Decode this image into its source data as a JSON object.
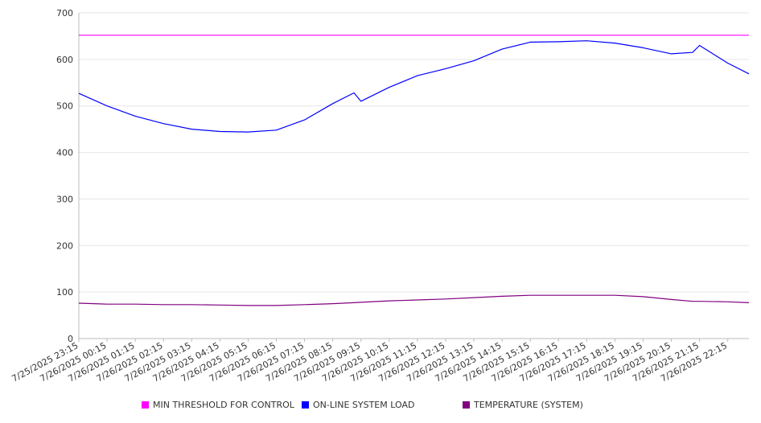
{
  "chart_data": {
    "type": "line",
    "x_tick_labels": [
      "7/25/2025 23:15",
      "7/26/2025 00:15",
      "7/26/2025 01:15",
      "7/26/2025 02:15",
      "7/26/2025 03:15",
      "7/26/2025 04:15",
      "7/26/2025 05:15",
      "7/26/2025 06:15",
      "7/26/2025 07:15",
      "7/26/2025 08:15",
      "7/26/2025 09:15",
      "7/26/2025 10:15",
      "7/26/2025 11:15",
      "7/26/2025 12:15",
      "7/26/2025 13:15",
      "7/26/2025 14:15",
      "7/26/2025 15:15",
      "7/26/2025 16:15",
      "7/26/2025 17:15",
      "7/26/2025 18:15",
      "7/26/2025 19:15",
      "7/26/2025 20:15",
      "7/26/2025 21:15",
      "7/26/2025 22:15"
    ],
    "y_ticks": [
      0,
      100,
      200,
      300,
      400,
      500,
      600,
      700
    ],
    "ylim": [
      0,
      700
    ],
    "x": [
      "7/25/2025 23:15",
      "7/26/2025 00:15",
      "7/26/2025 01:15",
      "7/26/2025 02:15",
      "7/26/2025 03:15",
      "7/26/2025 04:15",
      "7/26/2025 05:15",
      "7/26/2025 06:15",
      "7/26/2025 07:15",
      "7/26/2025 08:15",
      "7/26/2025 09:00",
      "7/26/2025 09:15",
      "7/26/2025 10:15",
      "7/26/2025 11:15",
      "7/26/2025 12:15",
      "7/26/2025 13:15",
      "7/26/2025 14:15",
      "7/26/2025 15:15",
      "7/26/2025 16:15",
      "7/26/2025 17:15",
      "7/26/2025 18:15",
      "7/26/2025 19:15",
      "7/26/2025 20:15",
      "7/26/2025 21:00",
      "7/26/2025 21:15",
      "7/26/2025 22:15",
      "7/26/2025 23:00"
    ],
    "series": [
      {
        "name": "MIN THRESHOLD FOR CONTROL",
        "color": "#ff00ff",
        "values": [
          652,
          652,
          652,
          652,
          652,
          652,
          652,
          652,
          652,
          652,
          652,
          652,
          652,
          652,
          652,
          652,
          652,
          652,
          652,
          652,
          652,
          652,
          652,
          652,
          652,
          652,
          652
        ]
      },
      {
        "name": "ON-LINE SYSTEM LOAD",
        "color": "#0000ff",
        "values": [
          527,
          500,
          478,
          462,
          450,
          445,
          444,
          448,
          470,
          505,
          528,
          510,
          540,
          565,
          580,
          597,
          622,
          637,
          638,
          640,
          635,
          625,
          612,
          615,
          630,
          592,
          569
        ]
      },
      {
        "name": "TEMPERATURE (SYSTEM)",
        "color": "#800080",
        "values": [
          76,
          74,
          74,
          73,
          73,
          72,
          71,
          71,
          73,
          75,
          77,
          78,
          81,
          83,
          85,
          88,
          91,
          93,
          93,
          93,
          93,
          90,
          84,
          80,
          80,
          79,
          77
        ]
      }
    ],
    "grid": true,
    "legend_position": "bottom"
  }
}
